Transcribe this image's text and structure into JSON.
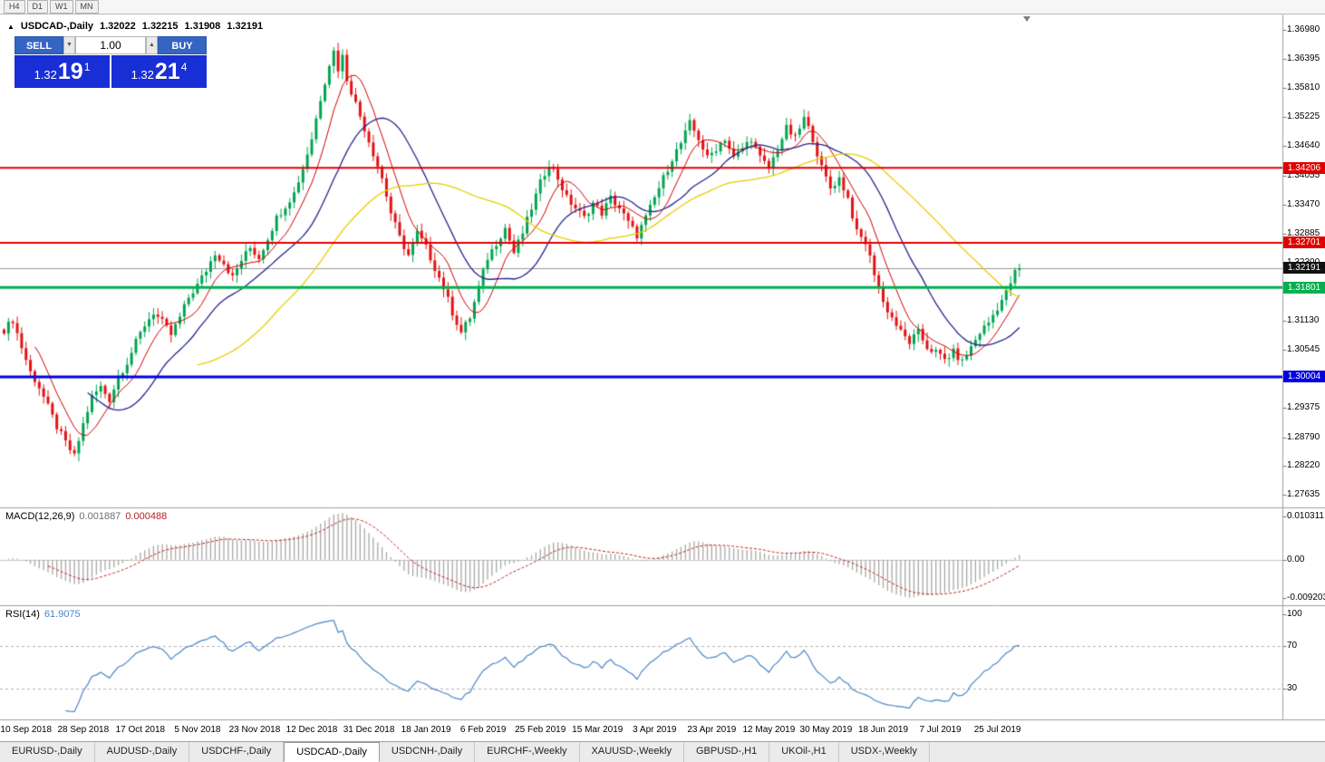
{
  "window": {
    "timeframes": [
      "H4",
      "D1",
      "W1",
      "MN"
    ]
  },
  "icons": {
    "panel_toggle": "▲",
    "vol_down": "▼",
    "vol_up": "▲"
  },
  "chart": {
    "symbol_title": "USDCAD-,Daily",
    "ohlc": {
      "open": "1.32022",
      "high": "1.32215",
      "low": "1.31908",
      "close": "1.32191"
    },
    "price_axis_labels": [
      "1.36980",
      "1.36395",
      "1.35810",
      "1.35225",
      "1.34640",
      "1.34055",
      "1.33470",
      "1.32885",
      "1.32300",
      "1.31715",
      "1.31130",
      "1.30545",
      "1.29960",
      "1.29375",
      "1.28790",
      "1.28220",
      "1.27635"
    ],
    "levels": [
      {
        "name": "resistance-upper",
        "price": "1.34206",
        "value": 1.34206,
        "color": "#e00000",
        "line_width": 2
      },
      {
        "name": "resistance-lower",
        "price": "1.32701",
        "value": 1.32701,
        "color": "#e00000",
        "line_width": 2
      },
      {
        "name": "support-green",
        "price": "1.31801",
        "value": 1.31801,
        "color": "#00b050",
        "line_width": 3
      },
      {
        "name": "support-blue",
        "price": "1.30004",
        "value": 1.30004,
        "color": "#0000e0",
        "line_width": 3
      }
    ],
    "current_price": {
      "label": "1.32191",
      "value": 1.32191,
      "badge_color": "#111111"
    },
    "date_axis": [
      {
        "label": "10 Sep 2018",
        "index": 5
      },
      {
        "label": "28 Sep 2018",
        "index": 18
      },
      {
        "label": "17 Oct 2018",
        "index": 31
      },
      {
        "label": "5 Nov 2018",
        "index": 44
      },
      {
        "label": "23 Nov 2018",
        "index": 57
      },
      {
        "label": "12 Dec 2018",
        "index": 70
      },
      {
        "label": "31 Dec 2018",
        "index": 83
      },
      {
        "label": "18 Jan 2019",
        "index": 96
      },
      {
        "label": "6 Feb 2019",
        "index": 109
      },
      {
        "label": "25 Feb 2019",
        "index": 122
      },
      {
        "label": "15 Mar 2019",
        "index": 135
      },
      {
        "label": "3 Apr 2019",
        "index": 148
      },
      {
        "label": "23 Apr 2019",
        "index": 161
      },
      {
        "label": "12 May 2019",
        "index": 174
      },
      {
        "label": "30 May 2019",
        "index": 187
      },
      {
        "label": "18 Jun 2019",
        "index": 200
      },
      {
        "label": "7 Jul 2019",
        "index": 213
      },
      {
        "label": "25 Jul 2019",
        "index": 226
      }
    ]
  },
  "trade_panel": {
    "sell_label": "SELL",
    "buy_label": "BUY",
    "volume": "1.00",
    "sell_price": {
      "big": "1.32",
      "mid": "19",
      "sup": "1"
    },
    "buy_price": {
      "big": "1.32",
      "mid": "21",
      "sup": "4"
    }
  },
  "macd": {
    "label": "MACD(12,26,9)",
    "value1": "0.001887",
    "value2": "0.000488",
    "axis_labels": [
      {
        "text": "0.010311",
        "value": 0.010311
      },
      {
        "text": "0.00",
        "value": 0
      },
      {
        "text": "-0.009203",
        "value": -0.009203
      }
    ]
  },
  "rsi": {
    "label": "RSI(14)",
    "value": "61.9075",
    "axis_labels": [
      {
        "text": "100",
        "value": 100
      },
      {
        "text": "70",
        "value": 70
      },
      {
        "text": "30",
        "value": 30
      }
    ],
    "levels": [
      70,
      30
    ]
  },
  "tabs": [
    {
      "label": "EURUSD-,Daily",
      "active": false
    },
    {
      "label": "AUDUSD-,Daily",
      "active": false
    },
    {
      "label": "USDCHF-,Daily",
      "active": false
    },
    {
      "label": "USDCAD-,Daily",
      "active": true
    },
    {
      "label": "USDCNH-,Daily",
      "active": false
    },
    {
      "label": "EURCHF-,Weekly",
      "active": false
    },
    {
      "label": "XAUUSD-,Weekly",
      "active": false
    },
    {
      "label": "GBPUSD-,H1",
      "active": false
    },
    {
      "label": "UKOil-,H1",
      "active": false
    },
    {
      "label": "USDX-,Weekly",
      "active": false
    }
  ],
  "colors": {
    "bull": "#00a550",
    "bear": "#e31212",
    "ma_fast": "#d40000",
    "ma_mid": "#26268e",
    "ma_slow": "#e8cf00",
    "macd_hist": "#a8a8a8",
    "macd_signal": "#c3251f",
    "rsi_line": "#4a86c8",
    "divider": "#9f9f9f",
    "trade_button_blue": "#3565c2",
    "trade_price_blue": "#182fd6",
    "current_price_line": "#9a9a9a"
  },
  "chart_data": {
    "type": "candlestick",
    "title": "USDCAD-,Daily",
    "symbol": "USDCAD",
    "timeframe": "Daily",
    "candle_count": 232,
    "y_axis_range": [
      1.2738,
      1.3729
    ],
    "price_step_per_gridline": 0.00585,
    "close_anchors": [
      [
        0,
        1.3095
      ],
      [
        2,
        1.3115
      ],
      [
        4,
        1.306
      ],
      [
        6,
        1.301
      ],
      [
        8,
        1.298
      ],
      [
        10,
        1.294
      ],
      [
        12,
        1.29
      ],
      [
        14,
        1.2868
      ],
      [
        16,
        1.284
      ],
      [
        18,
        1.2905
      ],
      [
        20,
        1.296
      ],
      [
        22,
        1.298
      ],
      [
        24,
        1.2955
      ],
      [
        26,
        1.3
      ],
      [
        28,
        1.303
      ],
      [
        30,
        1.307
      ],
      [
        32,
        1.3105
      ],
      [
        34,
        1.313
      ],
      [
        36,
        1.311
      ],
      [
        38,
        1.3085
      ],
      [
        40,
        1.312
      ],
      [
        42,
        1.316
      ],
      [
        44,
        1.3185
      ],
      [
        46,
        1.3215
      ],
      [
        48,
        1.325
      ],
      [
        50,
        1.323
      ],
      [
        52,
        1.32
      ],
      [
        54,
        1.3235
      ],
      [
        56,
        1.326
      ],
      [
        58,
        1.324
      ],
      [
        60,
        1.328
      ],
      [
        62,
        1.332
      ],
      [
        64,
        1.3345
      ],
      [
        66,
        1.337
      ],
      [
        68,
        1.342
      ],
      [
        70,
        1.348
      ],
      [
        72,
        1.356
      ],
      [
        74,
        1.363
      ],
      [
        75,
        1.3655
      ],
      [
        76,
        1.362
      ],
      [
        77,
        1.3645
      ],
      [
        78,
        1.36
      ],
      [
        80,
        1.355
      ],
      [
        82,
        1.35
      ],
      [
        84,
        1.345
      ],
      [
        86,
        1.34
      ],
      [
        88,
        1.333
      ],
      [
        90,
        1.328
      ],
      [
        92,
        1.3245
      ],
      [
        94,
        1.329
      ],
      [
        96,
        1.326
      ],
      [
        98,
        1.322
      ],
      [
        100,
        1.318
      ],
      [
        102,
        1.313
      ],
      [
        104,
        1.309
      ],
      [
        106,
        1.312
      ],
      [
        108,
        1.318
      ],
      [
        110,
        1.324
      ],
      [
        112,
        1.327
      ],
      [
        114,
        1.33
      ],
      [
        116,
        1.325
      ],
      [
        118,
        1.329
      ],
      [
        120,
        1.334
      ],
      [
        122,
        1.339
      ],
      [
        124,
        1.343
      ],
      [
        126,
        1.34
      ],
      [
        128,
        1.336
      ],
      [
        130,
        1.334
      ],
      [
        132,
        1.332
      ],
      [
        134,
        1.335
      ],
      [
        136,
        1.333
      ],
      [
        138,
        1.336
      ],
      [
        140,
        1.334
      ],
      [
        142,
        1.331
      ],
      [
        144,
        1.3285
      ],
      [
        146,
        1.332
      ],
      [
        148,
        1.336
      ],
      [
        150,
        1.34
      ],
      [
        152,
        1.344
      ],
      [
        154,
        1.347
      ],
      [
        156,
        1.351
      ],
      [
        158,
        1.348
      ],
      [
        160,
        1.344
      ],
      [
        162,
        1.346
      ],
      [
        164,
        1.348
      ],
      [
        166,
        1.344
      ],
      [
        168,
        1.346
      ],
      [
        170,
        1.348
      ],
      [
        172,
        1.344
      ],
      [
        174,
        1.342
      ],
      [
        176,
        1.346
      ],
      [
        178,
        1.35
      ],
      [
        180,
        1.348
      ],
      [
        182,
        1.352
      ],
      [
        184,
        1.348
      ],
      [
        186,
        1.342
      ],
      [
        188,
        1.338
      ],
      [
        190,
        1.34
      ],
      [
        192,
        1.336
      ],
      [
        194,
        1.329
      ],
      [
        196,
        1.327
      ],
      [
        198,
        1.321
      ],
      [
        200,
        1.315
      ],
      [
        202,
        1.312
      ],
      [
        204,
        1.309
      ],
      [
        206,
        1.307
      ],
      [
        208,
        1.309
      ],
      [
        210,
        1.306
      ],
      [
        212,
        1.305
      ],
      [
        214,
        1.3035
      ],
      [
        216,
        1.305
      ],
      [
        218,
        1.303
      ],
      [
        220,
        1.306
      ],
      [
        222,
        1.309
      ],
      [
        224,
        1.311
      ],
      [
        226,
        1.314
      ],
      [
        228,
        1.317
      ],
      [
        230,
        1.321
      ],
      [
        231,
        1.32191
      ]
    ],
    "moving_averages": [
      {
        "period": 8,
        "color": "#d40000"
      },
      {
        "period": 20,
        "color": "#26268e"
      },
      {
        "period": 45,
        "color": "#e8cf00"
      }
    ],
    "indicators": [
      {
        "name": "MACD",
        "params": [
          12,
          26,
          9
        ],
        "current": [
          0.001887,
          0.000488
        ]
      },
      {
        "name": "RSI",
        "params": [
          14
        ],
        "current": 61.9075
      }
    ]
  }
}
